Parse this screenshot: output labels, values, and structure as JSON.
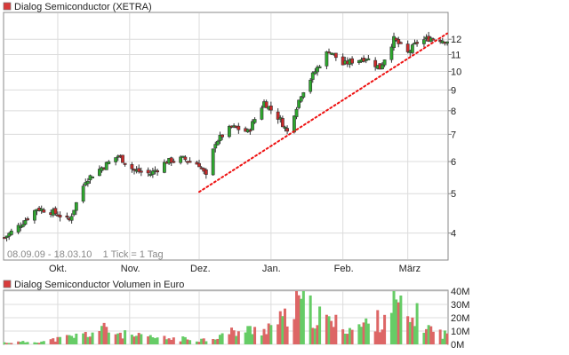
{
  "colors": {
    "up": "#2eaa2e",
    "down": "#cc2a2a",
    "trend": "#ee1111",
    "grid": "#dcdcdc",
    "frame": "#8a8a8a",
    "vol_up": "#66cc66",
    "vol_down": "#dd6666"
  },
  "price_chart": {
    "legend_label": "Dialog Semiconductor (XETRA)",
    "range_label": "08.09.09 - 18.03.10    1 Tick = 1 Tag",
    "x_tick_labels": [
      "Okt.",
      "Nov.",
      "Dez.",
      "Jan.",
      "Feb.",
      "März"
    ],
    "y_tick_labels": [
      "4",
      "5",
      "6",
      "7",
      "8",
      "9",
      "10",
      "11",
      "12"
    ]
  },
  "volume_chart": {
    "legend_label": "Dialog Semiconductor Volumen in Euro",
    "y_tick_labels": [
      "0M",
      "10M",
      "20M",
      "30M",
      "40M"
    ]
  },
  "chart_data": [
    {
      "type": "candlestick",
      "title": "Dialog Semiconductor (XETRA)",
      "y_scale": "log",
      "y_ticks": [
        4,
        5,
        6,
        7,
        8,
        9,
        10,
        11,
        12
      ],
      "x_range": [
        "08.09.09",
        "18.03.10"
      ],
      "interval": "1 Tick = 1 Tag",
      "x_tick_labels": [
        "Okt.",
        "Nov.",
        "Dez.",
        "Jan.",
        "Feb.",
        "März"
      ],
      "approximate_close_path": [
        {
          "date": "08.09.09",
          "close": 3.9
        },
        {
          "date": "15.09.09",
          "close": 4.2
        },
        {
          "date": "22.09.09",
          "close": 4.6
        },
        {
          "date": "29.09.09",
          "close": 4.5
        },
        {
          "date": "06.10.09",
          "close": 4.3
        },
        {
          "date": "13.10.09",
          "close": 5.4
        },
        {
          "date": "20.10.09",
          "close": 5.8
        },
        {
          "date": "27.10.09",
          "close": 6.2
        },
        {
          "date": "03.11.09",
          "close": 5.7
        },
        {
          "date": "10.11.09",
          "close": 5.6
        },
        {
          "date": "17.11.09",
          "close": 6.0
        },
        {
          "date": "24.11.09",
          "close": 6.1
        },
        {
          "date": "01.12.09",
          "close": 5.9
        },
        {
          "date": "04.12.09",
          "close": 5.5
        },
        {
          "date": "08.12.09",
          "close": 6.7
        },
        {
          "date": "15.12.09",
          "close": 7.3
        },
        {
          "date": "22.12.09",
          "close": 7.1
        },
        {
          "date": "29.12.09",
          "close": 8.4
        },
        {
          "date": "05.01.10",
          "close": 7.6
        },
        {
          "date": "08.01.10",
          "close": 7.1
        },
        {
          "date": "14.01.10",
          "close": 8.8
        },
        {
          "date": "20.01.10",
          "close": 10.0
        },
        {
          "date": "26.01.10",
          "close": 11.3
        },
        {
          "date": "01.02.10",
          "close": 10.4
        },
        {
          "date": "05.02.10",
          "close": 10.6
        },
        {
          "date": "11.02.10",
          "close": 10.8
        },
        {
          "date": "17.02.10",
          "close": 10.2
        },
        {
          "date": "23.02.10",
          "close": 12.0
        },
        {
          "date": "01.03.10",
          "close": 11.1
        },
        {
          "date": "05.03.10",
          "close": 11.8
        },
        {
          "date": "11.03.10",
          "close": 12.1
        },
        {
          "date": "18.03.10",
          "close": 11.9
        }
      ],
      "trendline": {
        "style": "dotted",
        "start": {
          "date": "01.12.09",
          "close": 5.05
        },
        "end": {
          "date": "18.03.10",
          "close": 12.4
        }
      }
    },
    {
      "type": "bar",
      "title": "Dialog Semiconductor Volumen in Euro",
      "y_unit": "M",
      "ylim": [
        0,
        40
      ],
      "y_ticks": [
        0,
        10,
        20,
        30,
        40
      ],
      "approximate_volumes": [
        {
          "date": "08.09.09",
          "volume": 1.5
        },
        {
          "date": "25.09.09",
          "volume": 2.5
        },
        {
          "date": "15.10.09",
          "volume": 9.0
        },
        {
          "date": "20.10.09",
          "volume": 13.0
        },
        {
          "date": "01.11.09",
          "volume": 7.0
        },
        {
          "date": "15.11.09",
          "volume": 5.0
        },
        {
          "date": "04.12.09",
          "volume": 4.0
        },
        {
          "date": "15.12.09",
          "volume": 10.0
        },
        {
          "date": "29.12.09",
          "volume": 13.0
        },
        {
          "date": "08.01.10",
          "volume": 22.0
        },
        {
          "date": "14.01.10",
          "volume": 35.0
        },
        {
          "date": "20.01.10",
          "volume": 24.0
        },
        {
          "date": "26.01.10",
          "volume": 19.0
        },
        {
          "date": "05.02.10",
          "volume": 13.0
        },
        {
          "date": "17.02.10",
          "volume": 20.0
        },
        {
          "date": "23.02.10",
          "volume": 37.0
        },
        {
          "date": "01.03.10",
          "volume": 19.0
        },
        {
          "date": "05.03.10",
          "volume": 23.0
        },
        {
          "date": "11.03.10",
          "volume": 12.0
        },
        {
          "date": "18.03.10",
          "volume": 8.0
        }
      ]
    }
  ]
}
